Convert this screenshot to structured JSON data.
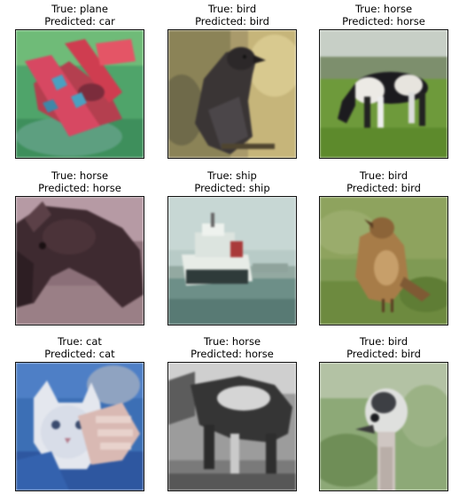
{
  "grid": [
    {
      "true_label": "True: plane",
      "pred_label": "Predicted: car",
      "image": "blurry red toy airplane on green background"
    },
    {
      "true_label": "True: bird",
      "pred_label": "Predicted: bird",
      "image": "dark crow on a branch"
    },
    {
      "true_label": "True: horse",
      "pred_label": "Predicted: horse",
      "image": "black and white horse grazing on grass"
    },
    {
      "true_label": "True: horse",
      "pred_label": "Predicted: horse",
      "image": "close-up of dark horse head"
    },
    {
      "true_label": "True: ship",
      "pred_label": "Predicted: ship",
      "image": "white ship on water"
    },
    {
      "true_label": "True: bird",
      "pred_label": "Predicted: bird",
      "image": "brown bird on grass"
    },
    {
      "true_label": "True: cat",
      "pred_label": "Predicted: cat",
      "image": "white cat being held by a hand"
    },
    {
      "true_label": "True: horse",
      "pred_label": "Predicted: horse",
      "image": "grayscale horse"
    },
    {
      "true_label": "True: bird",
      "pred_label": "Predicted: bird",
      "image": "ostrich head close-up"
    }
  ]
}
